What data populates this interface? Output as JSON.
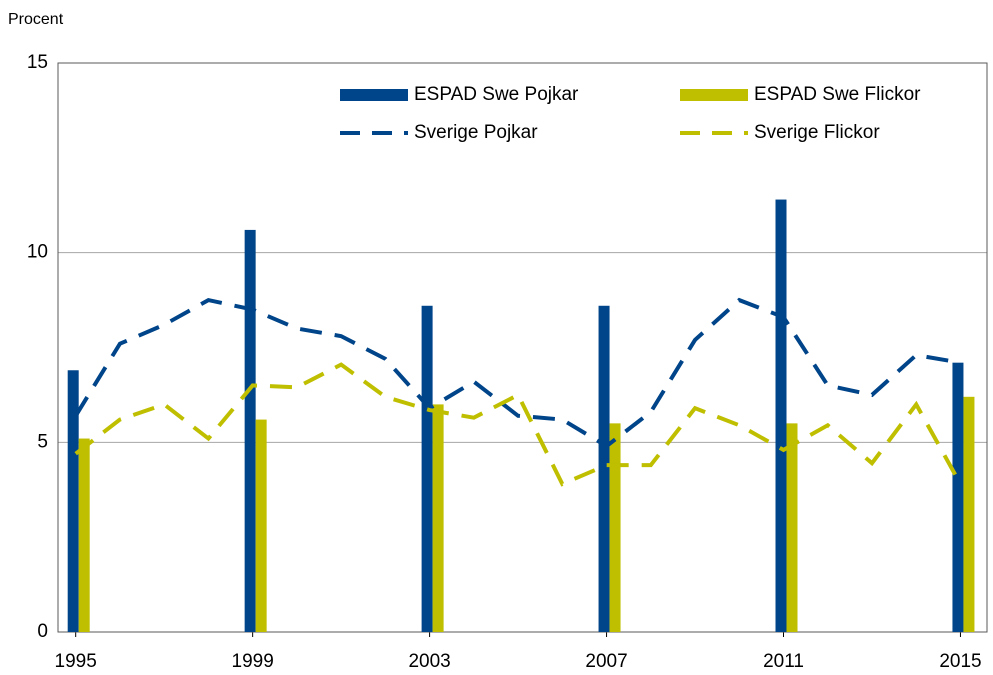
{
  "chart_data": {
    "type": "bar-line",
    "y_label": "Procent",
    "x": [
      1995,
      1996,
      1997,
      1998,
      1999,
      2000,
      2001,
      2002,
      2003,
      2004,
      2005,
      2006,
      2007,
      2008,
      2009,
      2010,
      2011,
      2012,
      2013,
      2014,
      2015
    ],
    "xlim": [
      1994.6,
      2015.6
    ],
    "xticks": [
      1995,
      1999,
      2003,
      2007,
      2011,
      2015
    ],
    "ylim": [
      0,
      15
    ],
    "yticks": [
      0,
      5,
      10,
      15
    ],
    "grid": true,
    "legend": "upper right",
    "series": [
      {
        "name": "ESPAD Swe Pojkar",
        "kind": "bar",
        "color": "#004489",
        "values": [
          6.9,
          null,
          null,
          null,
          10.6,
          null,
          null,
          null,
          8.6,
          null,
          null,
          null,
          8.6,
          null,
          null,
          null,
          11.4,
          null,
          null,
          null,
          7.1
        ]
      },
      {
        "name": "ESPAD Swe Flickor",
        "kind": "bar",
        "color": "#bfbf00",
        "values": [
          5.1,
          null,
          null,
          null,
          5.6,
          null,
          null,
          null,
          6.0,
          null,
          null,
          null,
          5.5,
          null,
          null,
          null,
          5.5,
          null,
          null,
          null,
          6.2
        ]
      },
      {
        "name": "Sverige Pojkar",
        "kind": "dashed-line",
        "color": "#004489",
        "values": [
          5.7,
          7.6,
          8.1,
          8.75,
          8.5,
          8.0,
          7.8,
          7.2,
          5.9,
          6.6,
          5.7,
          5.6,
          4.9,
          5.8,
          7.7,
          8.75,
          8.3,
          6.5,
          6.25,
          7.3,
          7.1
        ]
      },
      {
        "name": "Sverige Flickor",
        "kind": "dashed-line",
        "color": "#bfbf00",
        "values": [
          4.7,
          5.6,
          6.0,
          5.1,
          6.5,
          6.45,
          7.05,
          6.2,
          5.85,
          5.65,
          6.25,
          3.9,
          4.4,
          4.4,
          5.9,
          5.45,
          4.8,
          5.45,
          4.45,
          6.0,
          3.9
        ]
      }
    ]
  }
}
